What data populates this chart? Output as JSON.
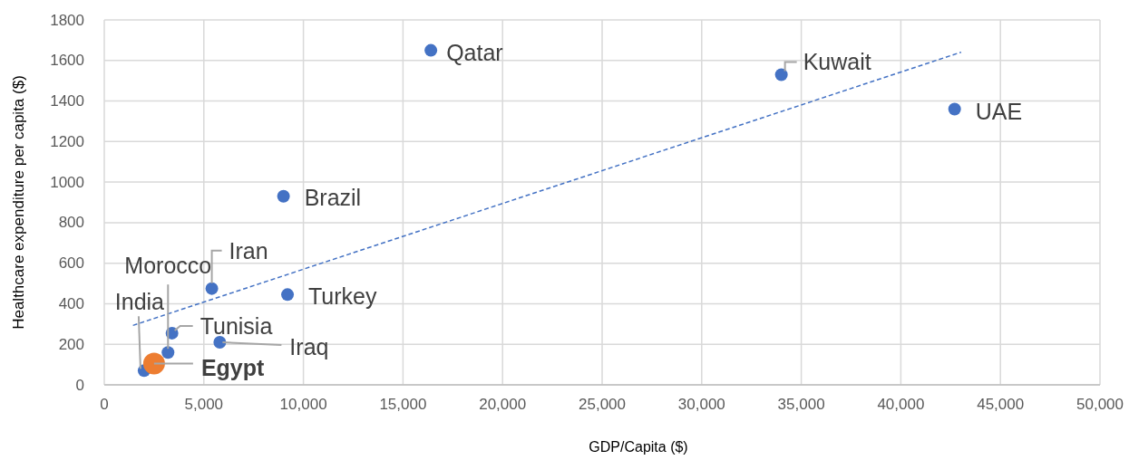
{
  "chart_data": {
    "type": "scatter",
    "xlabel": "GDP/Capita ($)",
    "ylabel": "Healthcare expenditure per capita ($)",
    "xlim": [
      0,
      50000
    ],
    "xticks": [
      0,
      {
        "value": 5000,
        "label": "5,000"
      },
      {
        "value": 10000,
        "label": "10,000"
      },
      {
        "value": 15000,
        "label": "15,000"
      },
      {
        "value": 20000,
        "label": "20,000"
      },
      {
        "value": 25000,
        "label": "25,000"
      },
      {
        "value": 30000,
        "label": "30,000"
      },
      {
        "value": 35000,
        "label": "35,000"
      },
      {
        "value": 40000,
        "label": "40,000"
      },
      {
        "value": 45000,
        "label": "45,000"
      },
      {
        "value": 50000,
        "label": "50,000"
      }
    ],
    "ylim": [
      0,
      1800
    ],
    "yticks": [
      0,
      200,
      400,
      600,
      800,
      1000,
      1200,
      1400,
      1600,
      1800
    ],
    "grid": true,
    "series": [
      {
        "color": "#4472c4",
        "marker": "circle",
        "x": [
          16400,
          34000,
          42700,
          9000,
          5400,
          9200,
          3400,
          5800,
          3200,
          2000
        ],
        "values": [
          1650,
          1530,
          1360,
          930,
          475,
          445,
          255,
          210,
          160,
          70
        ],
        "value_labels": [
          "Qatar",
          "Kuwait",
          "UAE",
          "Brazil",
          "Iran",
          "Turkey",
          "Tunisia",
          "Iraq",
          "Morocco",
          "India"
        ]
      },
      {
        "color": "#ed7d31",
        "marker": "circle",
        "x": [
          2500
        ],
        "values": [
          105
        ],
        "value_labels": [
          "Egypt"
        ]
      },
      {
        "type": "line",
        "color": "#4472c4",
        "line_style": "dashed",
        "marker": "none",
        "x": [
          1440,
          43030
        ],
        "values": [
          293,
          1641
        ]
      }
    ]
  }
}
